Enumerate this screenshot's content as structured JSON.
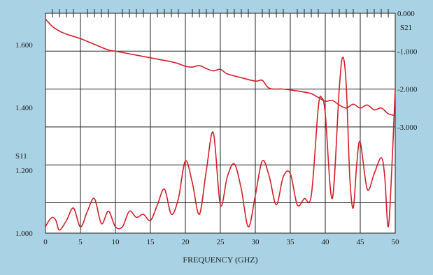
{
  "colors": {
    "background": "#a9d3e5",
    "plot_background": "#ffffff",
    "grid": "#222222",
    "trace": "#d41e2a"
  },
  "chart_data": {
    "type": "line",
    "xlabel": "FREQUENCY (GHZ)",
    "xlim": [
      0,
      50
    ],
    "x_ticks": [
      "0",
      "5",
      "10",
      "15",
      "20",
      "25",
      "30",
      "35",
      "40",
      "45",
      "50"
    ],
    "grid": true,
    "left_axis": {
      "label": "S11",
      "ylim": [
        1.0,
        1.7
      ],
      "ticks": [
        "1.600",
        "1.400",
        "1.200",
        "1.000"
      ],
      "tick_values": [
        1.6,
        1.4,
        1.2,
        1.0
      ]
    },
    "right_axis": {
      "label": "S21",
      "ylim": [
        -5.8,
        0.0
      ],
      "ticks": [
        "0.000",
        "-1.000",
        "-2.000",
        "-3.000"
      ],
      "tick_values": [
        0.0,
        -1.0,
        -2.0,
        -3.0
      ]
    },
    "series": [
      {
        "axis": "right",
        "x": [
          0,
          1,
          2,
          3,
          5,
          7,
          9,
          10,
          12,
          14,
          16,
          18,
          19,
          20,
          21,
          22,
          23,
          24,
          25,
          26,
          28,
          30,
          31,
          32,
          34,
          36,
          37,
          38,
          39,
          40,
          41,
          42,
          43,
          44,
          45,
          46,
          47,
          48,
          49,
          50
        ],
        "y": [
          -0.15,
          -0.35,
          -0.47,
          -0.55,
          -0.67,
          -0.82,
          -0.97,
          -1.0,
          -1.07,
          -1.14,
          -1.21,
          -1.28,
          -1.33,
          -1.4,
          -1.42,
          -1.38,
          -1.46,
          -1.52,
          -1.48,
          -1.6,
          -1.7,
          -1.79,
          -1.77,
          -1.98,
          -2.0,
          -2.05,
          -2.08,
          -2.12,
          -2.22,
          -2.32,
          -2.3,
          -2.42,
          -2.5,
          -2.4,
          -2.5,
          -2.42,
          -2.55,
          -2.5,
          -2.65,
          -2.7
        ]
      },
      {
        "axis": "left",
        "x": [
          0,
          0.5,
          1,
          1.5,
          2,
          3,
          4,
          5,
          6,
          7,
          8,
          9,
          10,
          11,
          12,
          13,
          14,
          15,
          16,
          17,
          18,
          19,
          20,
          21,
          22,
          23,
          24,
          25,
          26,
          27,
          28,
          29,
          30,
          31,
          32,
          33,
          34,
          35,
          36,
          37,
          38,
          39,
          39.5,
          40,
          41,
          42,
          42.5,
          43,
          43.5,
          44,
          44.5,
          45,
          46,
          47,
          48,
          48.5,
          49,
          49.5,
          50
        ],
        "y": [
          1.02,
          1.04,
          1.05,
          1.04,
          1.01,
          1.04,
          1.08,
          1.02,
          1.07,
          1.11,
          1.03,
          1.07,
          1.02,
          1.02,
          1.07,
          1.05,
          1.06,
          1.04,
          1.09,
          1.14,
          1.06,
          1.11,
          1.23,
          1.16,
          1.06,
          1.2,
          1.32,
          1.09,
          1.18,
          1.22,
          1.14,
          1.02,
          1.12,
          1.23,
          1.18,
          1.09,
          1.18,
          1.19,
          1.09,
          1.11,
          1.12,
          1.4,
          1.43,
          1.38,
          1.11,
          1.46,
          1.56,
          1.47,
          1.18,
          1.08,
          1.22,
          1.29,
          1.14,
          1.19,
          1.24,
          1.18,
          1.02,
          1.2,
          1.46
        ]
      }
    ]
  }
}
